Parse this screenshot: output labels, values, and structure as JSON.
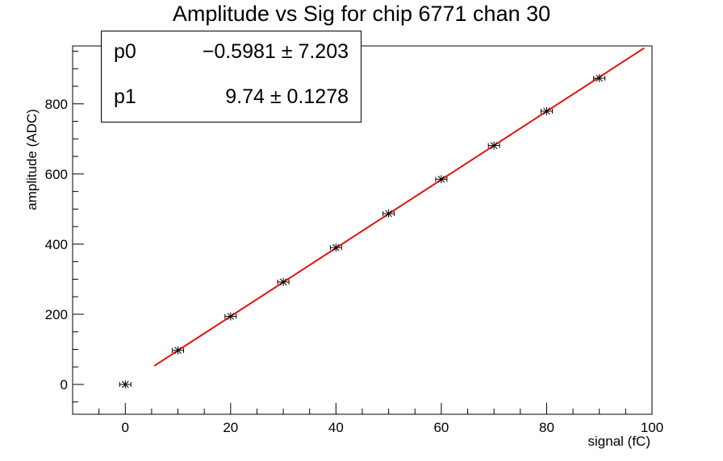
{
  "chart_data": {
    "type": "scatter",
    "title": "Amplitude vs Sig for chip 6771 chan 30",
    "xlabel": "signal (fC)",
    "ylabel": "amplitude (ADC)",
    "xlim": [
      -10,
      100
    ],
    "ylim": [
      -85,
      965
    ],
    "xticks": [
      0,
      20,
      40,
      60,
      80,
      100
    ],
    "yticks": [
      0,
      200,
      400,
      600,
      800
    ],
    "grid": false,
    "series": [
      {
        "x": [
          0,
          10,
          20,
          30,
          40,
          50,
          60,
          70,
          80,
          90
        ],
        "y": [
          0,
          97,
          194,
          292,
          390,
          487,
          585,
          681,
          779,
          873
        ],
        "marker": "star",
        "color": "#000000"
      }
    ],
    "fit": {
      "function": "linear",
      "color": "#e3120b",
      "x_range": [
        5.5,
        98.5
      ],
      "p0": -0.5981,
      "p1": 9.74
    },
    "fit_box": {
      "location": "top-left",
      "params": [
        {
          "name": "p0",
          "value": "−0.5981",
          "error": "7.203"
        },
        {
          "name": "p1",
          "value": "9.74",
          "error": "0.1278"
        }
      ]
    }
  }
}
